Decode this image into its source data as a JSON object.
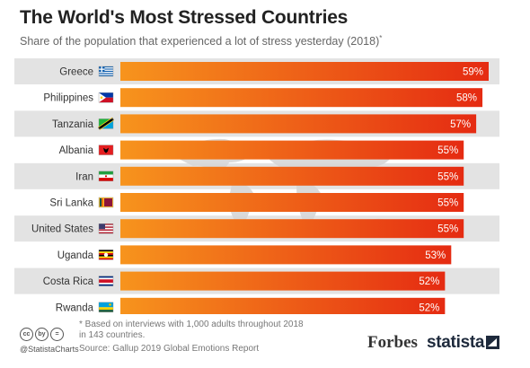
{
  "title": "The World's Most Stressed Countries",
  "subtitle": "Share of the population that experienced a lot of stress yesterday (2018)",
  "subtitle_mark": "*",
  "footnote": "* Based on interviews with 1,000 adults throughout 2018 in 143 countries.",
  "source": "Source: Gallup 2019 Global Emotions Report",
  "handle": "@StatistaCharts",
  "brand_forbes": "Forbes",
  "brand_statista": "statista",
  "cc_icons": [
    "cc",
    "by",
    "="
  ],
  "colors": {
    "bar_start": "#f7941d",
    "bar_end": "#e52b12",
    "row_band": "#e3e3e3",
    "map": "#d6d6d6"
  },
  "chart_data": {
    "type": "bar",
    "orientation": "horizontal",
    "categories": [
      "Greece",
      "Philippines",
      "Tanzania",
      "Albania",
      "Iran",
      "Sri Lanka",
      "United States",
      "Uganda",
      "Costa Rica",
      "Rwanda"
    ],
    "values": [
      59,
      58,
      57,
      55,
      55,
      55,
      55,
      53,
      52,
      52
    ],
    "data_labels": [
      "59%",
      "58%",
      "57%",
      "55%",
      "55%",
      "55%",
      "55%",
      "53%",
      "52%",
      "52%"
    ],
    "flags": [
      "greece-flag",
      "philippines-flag",
      "tanzania-flag",
      "albania-flag",
      "iran-flag",
      "sri-lanka-flag",
      "united-states-flag",
      "uganda-flag",
      "costa-rica-flag",
      "rwanda-flag"
    ],
    "xlim": [
      0,
      59
    ],
    "grid": false,
    "legend": "none"
  }
}
